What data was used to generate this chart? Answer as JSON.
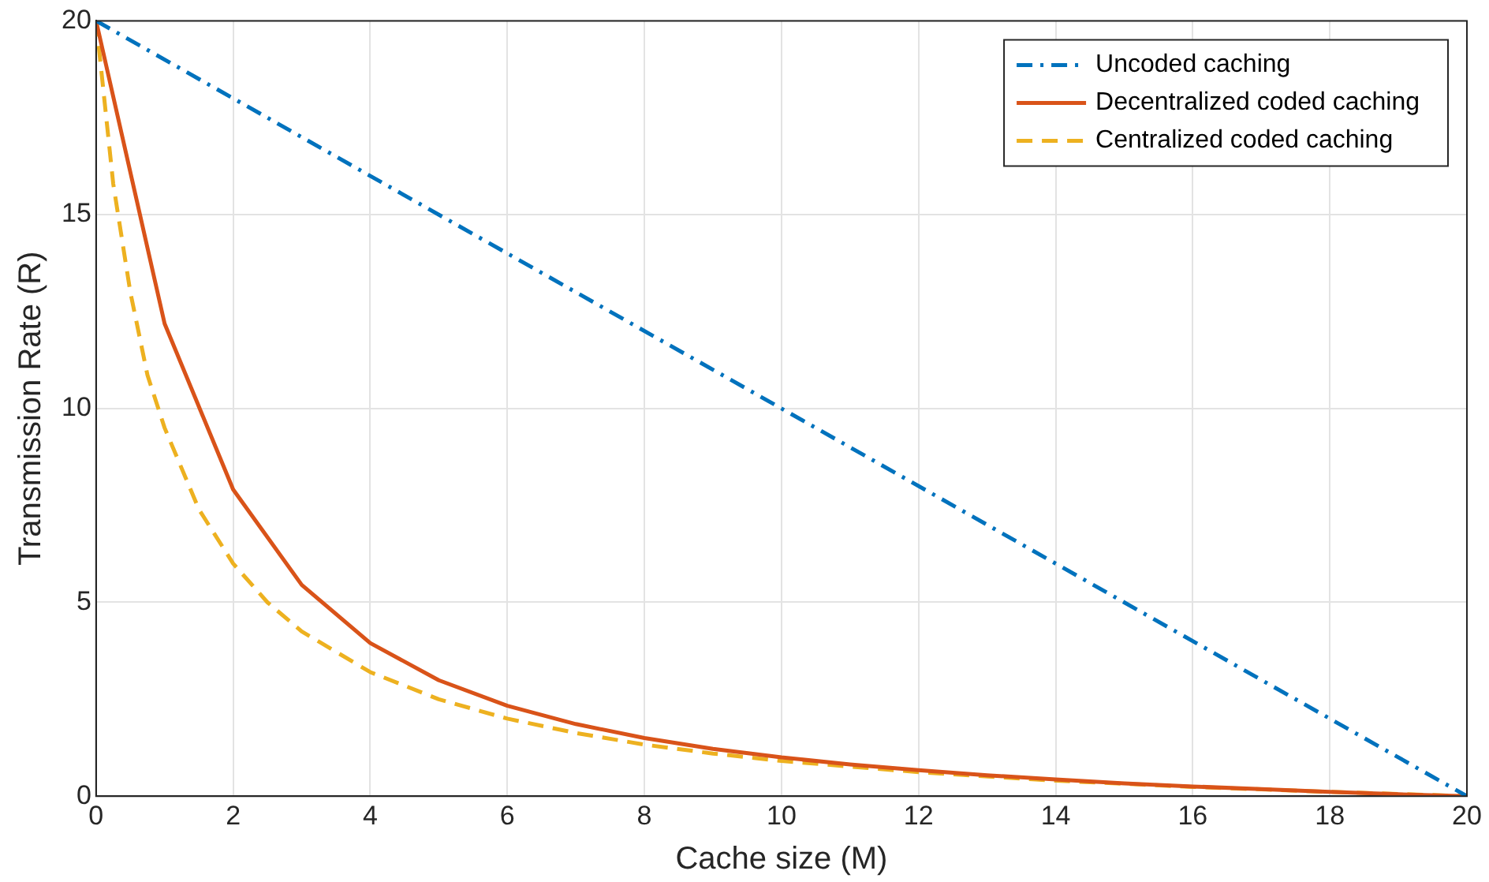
{
  "chart_data": {
    "type": "line",
    "xlabel": "Cache size (M)",
    "ylabel": "Transmission Rate (R)",
    "xlim": [
      0,
      20
    ],
    "xticks": [
      0,
      2,
      4,
      6,
      8,
      10,
      12,
      14,
      16,
      18,
      20
    ],
    "ylim": [
      0,
      20
    ],
    "yticks": [
      0,
      5,
      10,
      15,
      20
    ],
    "grid": true,
    "legend": "top right",
    "marker": "none",
    "series": [
      {
        "name": "Uncoded caching",
        "color": "#0072bd",
        "line_style": "dashdot",
        "x": [
          0,
          20
        ],
        "values": [
          20,
          0
        ]
      },
      {
        "name": "Decentralized coded caching",
        "color": "#d95319",
        "line_style": "solid",
        "x": [
          0,
          1,
          2,
          3,
          4,
          5,
          6,
          7,
          8,
          9,
          10,
          11,
          12,
          13,
          14,
          15,
          16,
          17,
          18,
          19,
          20
        ],
        "values": [
          20,
          12.19,
          7.91,
          5.45,
          3.95,
          2.99,
          2.33,
          1.86,
          1.5,
          1.22,
          1,
          0.82,
          0.67,
          0.54,
          0.43,
          0.33,
          0.25,
          0.18,
          0.11,
          0.05,
          0
        ]
      },
      {
        "name": "Centralized coded caching",
        "color": "#edb120",
        "line_style": "dashed",
        "x": [
          0,
          0.25,
          0.5,
          0.75,
          1,
          1.5,
          2,
          2.5,
          3,
          4,
          5,
          6,
          7,
          8,
          9,
          10,
          12,
          14,
          16,
          18,
          20
        ],
        "values": [
          20,
          15.8,
          13,
          10.86,
          9.5,
          7.4,
          6,
          5,
          4.25,
          3.2,
          2.5,
          2,
          1.63,
          1.33,
          1.1,
          0.91,
          0.62,
          0.4,
          0.24,
          0.11,
          0
        ]
      }
    ]
  }
}
